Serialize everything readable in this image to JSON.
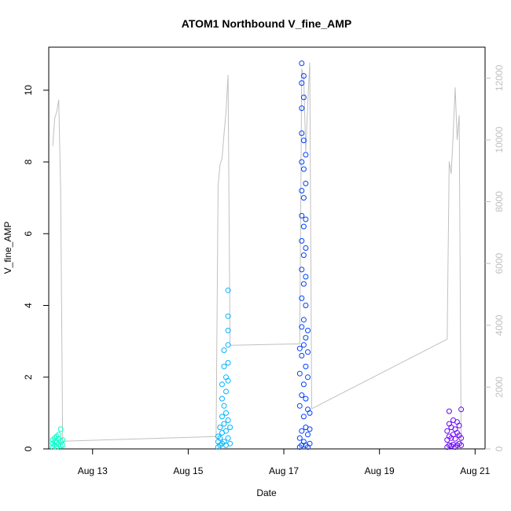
{
  "chart_data": {
    "type": "scatter",
    "title": "ATOM1 Northbound V_fine_AMP",
    "xlabel": "Date",
    "ylabel": "V_fine_AMP",
    "x_unit": "days",
    "xlim": [
      "2024-08-12T02:00",
      "2024-08-21T05:00"
    ],
    "ylim": [
      0,
      11.2
    ],
    "x_ticks": [
      {
        "label": "Aug 13",
        "value": "2024-08-13"
      },
      {
        "label": "Aug 15",
        "value": "2024-08-15"
      },
      {
        "label": "Aug 17",
        "value": "2024-08-17"
      },
      {
        "label": "Aug 19",
        "value": "2024-08-19"
      },
      {
        "label": "Aug 21",
        "value": "2024-08-21"
      }
    ],
    "y_ticks": [
      0,
      2,
      4,
      6,
      8,
      10
    ],
    "secondary_axis": {
      "ylim": [
        0,
        13000
      ],
      "ticks": [
        0,
        2000,
        4000,
        6000,
        8000,
        10000,
        12000
      ],
      "color": "#c0c0c0",
      "line_series": [
        {
          "x": "2024-08-12T04:00",
          "y": 9800
        },
        {
          "x": "2024-08-12T05:00",
          "y": 10700
        },
        {
          "x": "2024-08-12T06:00",
          "y": 10900
        },
        {
          "x": "2024-08-12T07:00",
          "y": 11300
        },
        {
          "x": "2024-08-12T08:00",
          "y": 8300
        },
        {
          "x": "2024-08-12T09:00",
          "y": 250
        },
        {
          "x": "2024-08-15T14:00",
          "y": 400
        },
        {
          "x": "2024-08-15T15:00",
          "y": 8500
        },
        {
          "x": "2024-08-15T16:00",
          "y": 9200
        },
        {
          "x": "2024-08-15T17:00",
          "y": 9400
        },
        {
          "x": "2024-08-15T18:00",
          "y": 10200
        },
        {
          "x": "2024-08-15T19:00",
          "y": 10900
        },
        {
          "x": "2024-08-15T20:00",
          "y": 12100
        },
        {
          "x": "2024-08-15T21:00",
          "y": 3350
        },
        {
          "x": "2024-08-17T08:00",
          "y": 3400
        },
        {
          "x": "2024-08-17T09:00",
          "y": 12300
        },
        {
          "x": "2024-08-17T10:00",
          "y": 12000
        },
        {
          "x": "2024-08-17T11:00",
          "y": 9600
        },
        {
          "x": "2024-08-17T12:00",
          "y": 11200
        },
        {
          "x": "2024-08-17T13:00",
          "y": 12500
        },
        {
          "x": "2024-08-17T14:00",
          "y": 1300
        },
        {
          "x": "2024-08-20T10:00",
          "y": 3550
        },
        {
          "x": "2024-08-20T11:00",
          "y": 9300
        },
        {
          "x": "2024-08-20T12:00",
          "y": 8900
        },
        {
          "x": "2024-08-20T13:00",
          "y": 10200
        },
        {
          "x": "2024-08-20T14:00",
          "y": 11700
        },
        {
          "x": "2024-08-20T15:00",
          "y": 10000
        },
        {
          "x": "2024-08-20T16:00",
          "y": 10800
        },
        {
          "x": "2024-08-20T17:00",
          "y": 100
        }
      ]
    },
    "series": [
      {
        "color": "#00ffc8",
        "points": [
          {
            "x": "2024-08-12T04:00",
            "y": 0.05
          },
          {
            "x": "2024-08-12T04:00",
            "y": 0.15
          },
          {
            "x": "2024-08-12T04:00",
            "y": 0.25
          },
          {
            "x": "2024-08-12T05:00",
            "y": 0.1
          },
          {
            "x": "2024-08-12T05:00",
            "y": 0.3
          },
          {
            "x": "2024-08-12T05:00",
            "y": 0.2
          },
          {
            "x": "2024-08-12T06:00",
            "y": 0.05
          },
          {
            "x": "2024-08-12T06:00",
            "y": 0.35
          },
          {
            "x": "2024-08-12T06:00",
            "y": 0.18
          },
          {
            "x": "2024-08-12T07:00",
            "y": 0.12
          },
          {
            "x": "2024-08-12T07:00",
            "y": 0.28
          },
          {
            "x": "2024-08-12T07:00",
            "y": 0.4
          },
          {
            "x": "2024-08-12T08:00",
            "y": 0.08
          },
          {
            "x": "2024-08-12T08:00",
            "y": 0.22
          },
          {
            "x": "2024-08-12T08:00",
            "y": 0.55
          },
          {
            "x": "2024-08-12T09:00",
            "y": 0.1
          },
          {
            "x": "2024-08-12T09:00",
            "y": 0.25
          }
        ]
      },
      {
        "color": "#00b4ff",
        "points": [
          {
            "x": "2024-08-15T15:00",
            "y": 0.05
          },
          {
            "x": "2024-08-15T15:00",
            "y": 0.2
          },
          {
            "x": "2024-08-15T15:00",
            "y": 0.35
          },
          {
            "x": "2024-08-15T16:00",
            "y": 0.1
          },
          {
            "x": "2024-08-15T16:00",
            "y": 0.3
          },
          {
            "x": "2024-08-15T16:00",
            "y": 0.6
          },
          {
            "x": "2024-08-15T17:00",
            "y": 0.15
          },
          {
            "x": "2024-08-15T17:00",
            "y": 0.45
          },
          {
            "x": "2024-08-15T17:00",
            "y": 0.9
          },
          {
            "x": "2024-08-15T17:00",
            "y": 1.4
          },
          {
            "x": "2024-08-15T17:00",
            "y": 1.8
          },
          {
            "x": "2024-08-15T18:00",
            "y": 0.2
          },
          {
            "x": "2024-08-15T18:00",
            "y": 0.7
          },
          {
            "x": "2024-08-15T18:00",
            "y": 1.2
          },
          {
            "x": "2024-08-15T18:00",
            "y": 2.3
          },
          {
            "x": "2024-08-15T18:00",
            "y": 2.75
          },
          {
            "x": "2024-08-15T19:00",
            "y": 0.1
          },
          {
            "x": "2024-08-15T19:00",
            "y": 0.5
          },
          {
            "x": "2024-08-15T19:00",
            "y": 1.0
          },
          {
            "x": "2024-08-15T19:00",
            "y": 1.6
          },
          {
            "x": "2024-08-15T19:00",
            "y": 2.0
          },
          {
            "x": "2024-08-15T20:00",
            "y": 0.3
          },
          {
            "x": "2024-08-15T20:00",
            "y": 0.8
          },
          {
            "x": "2024-08-15T20:00",
            "y": 1.9
          },
          {
            "x": "2024-08-15T20:00",
            "y": 2.4
          },
          {
            "x": "2024-08-15T20:00",
            "y": 2.9
          },
          {
            "x": "2024-08-15T20:00",
            "y": 3.3
          },
          {
            "x": "2024-08-15T20:00",
            "y": 3.7
          },
          {
            "x": "2024-08-15T20:00",
            "y": 4.42
          },
          {
            "x": "2024-08-15T21:00",
            "y": 0.15
          },
          {
            "x": "2024-08-15T21:00",
            "y": 0.6
          }
        ]
      },
      {
        "color": "#0040ff",
        "points": [
          {
            "x": "2024-08-17T08:00",
            "y": 0.05
          },
          {
            "x": "2024-08-17T08:00",
            "y": 0.3
          },
          {
            "x": "2024-08-17T08:00",
            "y": 1.2
          },
          {
            "x": "2024-08-17T08:00",
            "y": 2.1
          },
          {
            "x": "2024-08-17T08:00",
            "y": 2.8
          },
          {
            "x": "2024-08-17T09:00",
            "y": 0.1
          },
          {
            "x": "2024-08-17T09:00",
            "y": 0.5
          },
          {
            "x": "2024-08-17T09:00",
            "y": 1.5
          },
          {
            "x": "2024-08-17T09:00",
            "y": 2.6
          },
          {
            "x": "2024-08-17T09:00",
            "y": 3.4
          },
          {
            "x": "2024-08-17T09:00",
            "y": 4.2
          },
          {
            "x": "2024-08-17T09:00",
            "y": 5.0
          },
          {
            "x": "2024-08-17T09:00",
            "y": 5.8
          },
          {
            "x": "2024-08-17T09:00",
            "y": 6.5
          },
          {
            "x": "2024-08-17T09:00",
            "y": 7.2
          },
          {
            "x": "2024-08-17T09:00",
            "y": 8.0
          },
          {
            "x": "2024-08-17T09:00",
            "y": 8.8
          },
          {
            "x": "2024-08-17T09:00",
            "y": 9.5
          },
          {
            "x": "2024-08-17T09:00",
            "y": 10.2
          },
          {
            "x": "2024-08-17T09:00",
            "y": 10.75
          },
          {
            "x": "2024-08-17T10:00",
            "y": 0.2
          },
          {
            "x": "2024-08-17T10:00",
            "y": 0.9
          },
          {
            "x": "2024-08-17T10:00",
            "y": 1.8
          },
          {
            "x": "2024-08-17T10:00",
            "y": 2.9
          },
          {
            "x": "2024-08-17T10:00",
            "y": 3.6
          },
          {
            "x": "2024-08-17T10:00",
            "y": 4.6
          },
          {
            "x": "2024-08-17T10:00",
            "y": 5.4
          },
          {
            "x": "2024-08-17T10:00",
            "y": 6.2
          },
          {
            "x": "2024-08-17T10:00",
            "y": 7.0
          },
          {
            "x": "2024-08-17T10:00",
            "y": 7.8
          },
          {
            "x": "2024-08-17T10:00",
            "y": 8.6
          },
          {
            "x": "2024-08-17T10:00",
            "y": 9.8
          },
          {
            "x": "2024-08-17T10:00",
            "y": 10.4
          },
          {
            "x": "2024-08-17T11:00",
            "y": 0.1
          },
          {
            "x": "2024-08-17T11:00",
            "y": 0.6
          },
          {
            "x": "2024-08-17T11:00",
            "y": 1.4
          },
          {
            "x": "2024-08-17T11:00",
            "y": 2.3
          },
          {
            "x": "2024-08-17T11:00",
            "y": 3.1
          },
          {
            "x": "2024-08-17T11:00",
            "y": 4.0
          },
          {
            "x": "2024-08-17T11:00",
            "y": 4.8
          },
          {
            "x": "2024-08-17T11:00",
            "y": 5.6
          },
          {
            "x": "2024-08-17T11:00",
            "y": 6.4
          },
          {
            "x": "2024-08-17T11:00",
            "y": 7.4
          },
          {
            "x": "2024-08-17T11:00",
            "y": 8.2
          },
          {
            "x": "2024-08-17T12:00",
            "y": 0.05
          },
          {
            "x": "2024-08-17T12:00",
            "y": 0.4
          },
          {
            "x": "2024-08-17T12:00",
            "y": 1.1
          },
          {
            "x": "2024-08-17T12:00",
            "y": 2.0
          },
          {
            "x": "2024-08-17T12:00",
            "y": 2.7
          },
          {
            "x": "2024-08-17T12:00",
            "y": 3.3
          },
          {
            "x": "2024-08-17T13:00",
            "y": 0.15
          },
          {
            "x": "2024-08-17T13:00",
            "y": 0.55
          },
          {
            "x": "2024-08-17T13:00",
            "y": 1.0
          }
        ]
      },
      {
        "color": "#6a00ff",
        "points": [
          {
            "x": "2024-08-20T10:00",
            "y": 0.05
          },
          {
            "x": "2024-08-20T10:00",
            "y": 0.25
          },
          {
            "x": "2024-08-20T10:00",
            "y": 0.5
          },
          {
            "x": "2024-08-20T11:00",
            "y": 0.1
          },
          {
            "x": "2024-08-20T11:00",
            "y": 0.35
          },
          {
            "x": "2024-08-20T11:00",
            "y": 0.7
          },
          {
            "x": "2024-08-20T11:00",
            "y": 1.05
          },
          {
            "x": "2024-08-20T12:00",
            "y": 0.08
          },
          {
            "x": "2024-08-20T12:00",
            "y": 0.3
          },
          {
            "x": "2024-08-20T12:00",
            "y": 0.6
          },
          {
            "x": "2024-08-20T13:00",
            "y": 0.12
          },
          {
            "x": "2024-08-20T13:00",
            "y": 0.4
          },
          {
            "x": "2024-08-20T13:00",
            "y": 0.8
          },
          {
            "x": "2024-08-20T14:00",
            "y": 0.05
          },
          {
            "x": "2024-08-20T14:00",
            "y": 0.28
          },
          {
            "x": "2024-08-20T14:00",
            "y": 0.55
          },
          {
            "x": "2024-08-20T15:00",
            "y": 0.1
          },
          {
            "x": "2024-08-20T15:00",
            "y": 0.45
          },
          {
            "x": "2024-08-20T15:00",
            "y": 0.75
          },
          {
            "x": "2024-08-20T16:00",
            "y": 0.15
          },
          {
            "x": "2024-08-20T16:00",
            "y": 0.38
          },
          {
            "x": "2024-08-20T16:00",
            "y": 0.65
          },
          {
            "x": "2024-08-20T17:00",
            "y": 0.1
          },
          {
            "x": "2024-08-20T17:00",
            "y": 0.3
          },
          {
            "x": "2024-08-20T17:00",
            "y": 1.1
          }
        ]
      }
    ]
  }
}
